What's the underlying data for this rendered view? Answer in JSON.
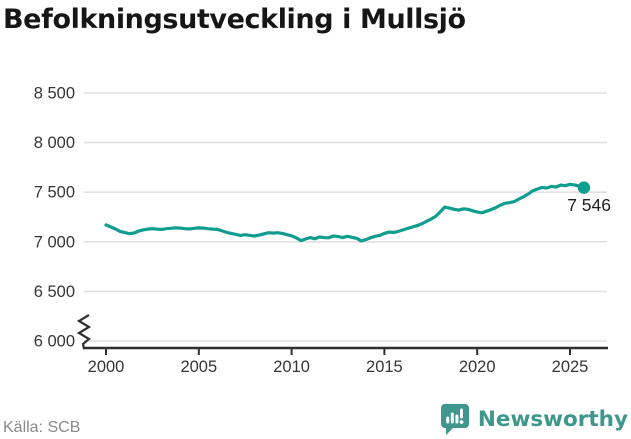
{
  "title": "Befolkningsutveckling i Mullsjö",
  "source": "Källa: SCB",
  "branding": {
    "wordmark": "Newsworthy",
    "icon": "newsworthy-speech-bubble-bar-chart"
  },
  "colors": {
    "background": "#FFFFFF",
    "line": "#0E9D8F",
    "logo": "#3F968C",
    "grid": "#E1E1E1",
    "axis": "#2F2F2F",
    "tick_text": "#363636",
    "title_text": "#161616",
    "source_text": "#8A8A8A",
    "value_label": "#1F1F1F"
  },
  "chart_data": {
    "type": "line",
    "title": "Befolkningsutveckling i Mullsjö",
    "xlabel": "",
    "ylabel": "",
    "x_start": 2000,
    "x_step": 0.25,
    "x_end": 2025.75,
    "values": [
      7170,
      7150,
      7130,
      7105,
      7095,
      7082,
      7088,
      7108,
      7120,
      7128,
      7132,
      7128,
      7125,
      7132,
      7136,
      7140,
      7138,
      7132,
      7130,
      7136,
      7140,
      7138,
      7132,
      7128,
      7125,
      7110,
      7095,
      7085,
      7075,
      7065,
      7072,
      7065,
      7058,
      7068,
      7080,
      7092,
      7088,
      7092,
      7085,
      7072,
      7060,
      7040,
      7012,
      7028,
      7042,
      7030,
      7048,
      7042,
      7040,
      7058,
      7052,
      7042,
      7055,
      7045,
      7035,
      7008,
      7022,
      7040,
      7055,
      7065,
      7085,
      7098,
      7095,
      7105,
      7120,
      7135,
      7148,
      7162,
      7180,
      7205,
      7228,
      7255,
      7300,
      7350,
      7340,
      7328,
      7320,
      7332,
      7328,
      7312,
      7300,
      7292,
      7308,
      7325,
      7345,
      7370,
      7388,
      7395,
      7405,
      7432,
      7455,
      7482,
      7515,
      7532,
      7548,
      7542,
      7558,
      7552,
      7572,
      7566,
      7580,
      7574,
      7560,
      7546
    ],
    "end_value": 7546,
    "end_label": "7 546",
    "x_tick_years": [
      2000,
      2005,
      2010,
      2015,
      2020,
      2025
    ],
    "x_tick_labels": [
      "2000",
      "2005",
      "2010",
      "2015",
      "2020",
      "2025"
    ],
    "y_tick_values": [
      8500,
      8000,
      7500,
      7000,
      6500,
      6000
    ],
    "y_tick_labels": [
      "8 500",
      "8 000",
      "7 500",
      "7 000",
      "6 500",
      "6 000"
    ],
    "ylim": [
      6000,
      8500
    ],
    "xlim_years": [
      2000,
      2025.75
    ],
    "grid": "horizontal",
    "legend": "none",
    "axis_break_at_bottom": true,
    "line_color": "#0E9D8F"
  }
}
